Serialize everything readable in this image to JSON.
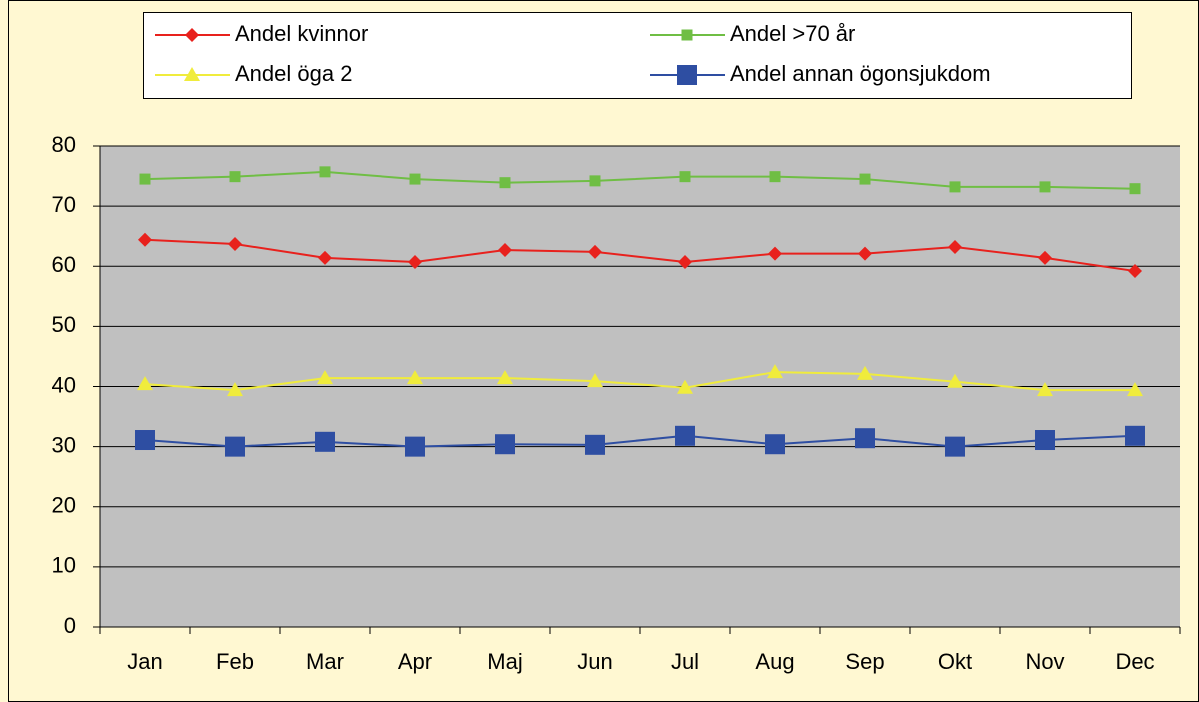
{
  "chart_data": {
    "type": "line",
    "categories": [
      "Jan",
      "Feb",
      "Mar",
      "Apr",
      "Maj",
      "Jun",
      "Jul",
      "Aug",
      "Sep",
      "Okt",
      "Nov",
      "Dec"
    ],
    "series": [
      {
        "name": "Andel kvinnor",
        "color": "#e8211d",
        "marker": "diamond",
        "values": [
          64.4,
          63.7,
          61.4,
          60.7,
          62.7,
          62.4,
          60.7,
          62.1,
          62.1,
          63.2,
          61.4,
          59.2
        ]
      },
      {
        "name": "Andel >70 år",
        "color": "#6fbe44",
        "marker": "square",
        "values": [
          74.5,
          74.9,
          75.7,
          74.5,
          73.9,
          74.2,
          74.9,
          74.9,
          74.5,
          73.2,
          73.2,
          72.9
        ]
      },
      {
        "name": "Andel öga 2",
        "color": "#f0ec3c",
        "marker": "triangle",
        "values": [
          40.4,
          39.4,
          41.4,
          41.4,
          41.4,
          40.9,
          39.8,
          42.4,
          42.1,
          40.8,
          39.4,
          39.4
        ]
      },
      {
        "name": "Andel annan ögonsjukdom",
        "color": "#2e4ea2",
        "marker": "bigsquare",
        "values": [
          31.1,
          30.0,
          30.8,
          30.0,
          30.4,
          30.3,
          31.8,
          30.4,
          31.4,
          30.0,
          31.1,
          31.8
        ]
      }
    ],
    "ylim": [
      0,
      80
    ],
    "yticks": [
      0,
      10,
      20,
      30,
      40,
      50,
      60,
      70,
      80
    ],
    "grid": true,
    "legend": "top"
  }
}
